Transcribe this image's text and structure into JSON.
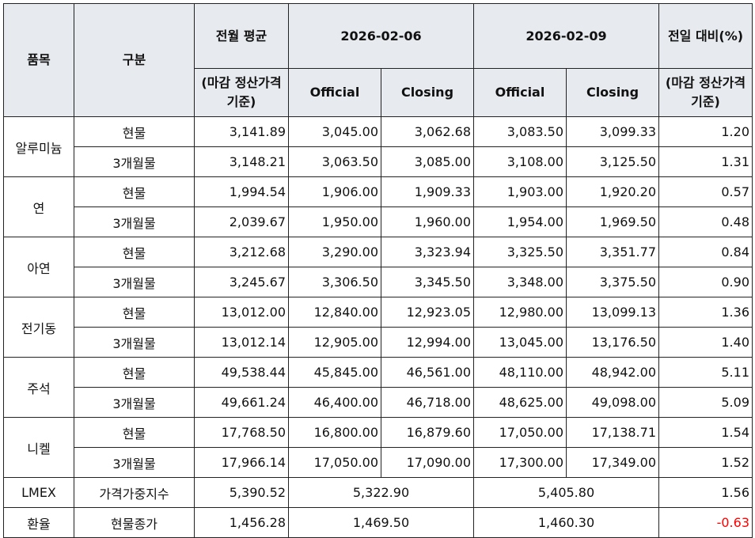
{
  "header": {
    "item": "품목",
    "category": "구분",
    "prev_month_avg": "전월 평균",
    "prev_month_avg_sub": "(마감 정산가격 기준)",
    "date1": "2026-02-06",
    "date2": "2026-02-09",
    "day_change": "전일 대비(%)",
    "day_change_sub": "(마감 정산가격 기준)",
    "official": "Official",
    "closing": "Closing"
  },
  "groups": [
    {
      "name": "알루미늄",
      "rows": [
        {
          "type": "현물",
          "avg": "3,141.89",
          "d1_off": "3,045.00",
          "d1_close": "3,062.68",
          "d2_off": "3,083.50",
          "d2_close": "3,099.33",
          "chg": "1.20"
        },
        {
          "type": "3개월물",
          "avg": "3,148.21",
          "d1_off": "3,063.50",
          "d1_close": "3,085.00",
          "d2_off": "3,108.00",
          "d2_close": "3,125.50",
          "chg": "1.31"
        }
      ]
    },
    {
      "name": "연",
      "rows": [
        {
          "type": "현물",
          "avg": "1,994.54",
          "d1_off": "1,906.00",
          "d1_close": "1,909.33",
          "d2_off": "1,903.00",
          "d2_close": "1,920.20",
          "chg": "0.57"
        },
        {
          "type": "3개월물",
          "avg": "2,039.67",
          "d1_off": "1,950.00",
          "d1_close": "1,960.00",
          "d2_off": "1,954.00",
          "d2_close": "1,969.50",
          "chg": "0.48"
        }
      ]
    },
    {
      "name": "아연",
      "rows": [
        {
          "type": "현물",
          "avg": "3,212.68",
          "d1_off": "3,290.00",
          "d1_close": "3,323.94",
          "d2_off": "3,325.50",
          "d2_close": "3,351.77",
          "chg": "0.84"
        },
        {
          "type": "3개월물",
          "avg": "3,245.67",
          "d1_off": "3,306.50",
          "d1_close": "3,345.50",
          "d2_off": "3,348.00",
          "d2_close": "3,375.50",
          "chg": "0.90"
        }
      ]
    },
    {
      "name": "전기동",
      "rows": [
        {
          "type": "현물",
          "avg": "13,012.00",
          "d1_off": "12,840.00",
          "d1_close": "12,923.05",
          "d2_off": "12,980.00",
          "d2_close": "13,099.13",
          "chg": "1.36"
        },
        {
          "type": "3개월물",
          "avg": "13,012.14",
          "d1_off": "12,905.00",
          "d1_close": "12,994.00",
          "d2_off": "13,045.00",
          "d2_close": "13,176.50",
          "chg": "1.40"
        }
      ]
    },
    {
      "name": "주석",
      "rows": [
        {
          "type": "현물",
          "avg": "49,538.44",
          "d1_off": "45,845.00",
          "d1_close": "46,561.00",
          "d2_off": "48,110.00",
          "d2_close": "48,942.00",
          "chg": "5.11"
        },
        {
          "type": "3개월물",
          "avg": "49,661.24",
          "d1_off": "46,400.00",
          "d1_close": "46,718.00",
          "d2_off": "48,625.00",
          "d2_close": "49,098.00",
          "chg": "5.09"
        }
      ]
    },
    {
      "name": "니켈",
      "rows": [
        {
          "type": "현물",
          "avg": "17,768.50",
          "d1_off": "16,800.00",
          "d1_close": "16,879.60",
          "d2_off": "17,050.00",
          "d2_close": "17,138.71",
          "chg": "1.54"
        },
        {
          "type": "3개월물",
          "avg": "17,966.14",
          "d1_off": "17,050.00",
          "d1_close": "17,090.00",
          "d2_off": "17,300.00",
          "d2_close": "17,349.00",
          "chg": "1.52"
        }
      ]
    }
  ],
  "lmex": {
    "name": "LMEX",
    "type": "가격가중지수",
    "avg": "5,390.52",
    "d1": "5,322.90",
    "d2": "5,405.80",
    "chg": "1.56"
  },
  "fx": {
    "name": "환율",
    "type": "현물종가",
    "avg": "1,456.28",
    "d1": "1,469.50",
    "d2": "1,460.30",
    "chg": "-0.63"
  },
  "colors": {
    "header_bg": "#e7eaee",
    "negative": "#ff0000"
  }
}
